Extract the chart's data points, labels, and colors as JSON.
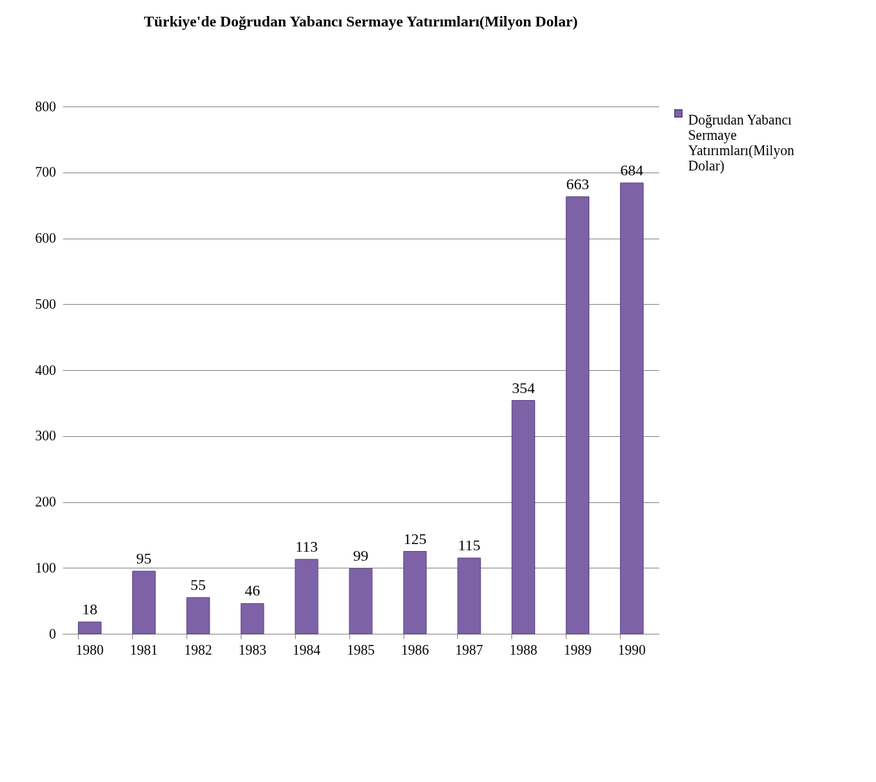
{
  "chart_data": {
    "type": "bar",
    "title": "Türkiye'de Doğrudan Yabancı Sermaye Yatırımları(Milyon Dolar)",
    "categories": [
      "1980",
      "1981",
      "1982",
      "1983",
      "1984",
      "1985",
      "1986",
      "1987",
      "1988",
      "1989",
      "1990"
    ],
    "series": [
      {
        "name": "Doğrudan Yabancı Sermaye Yatırımları(Milyon Dolar)",
        "color": "#7e62a8",
        "values": [
          18,
          95,
          55,
          46,
          113,
          99,
          125,
          115,
          354,
          663,
          684
        ]
      }
    ],
    "ylim": [
      0,
      800
    ],
    "yticks": [
      0,
      100,
      200,
      300,
      400,
      500,
      600,
      700,
      800
    ],
    "grid": "y",
    "legend": "right",
    "data_labels": true
  }
}
